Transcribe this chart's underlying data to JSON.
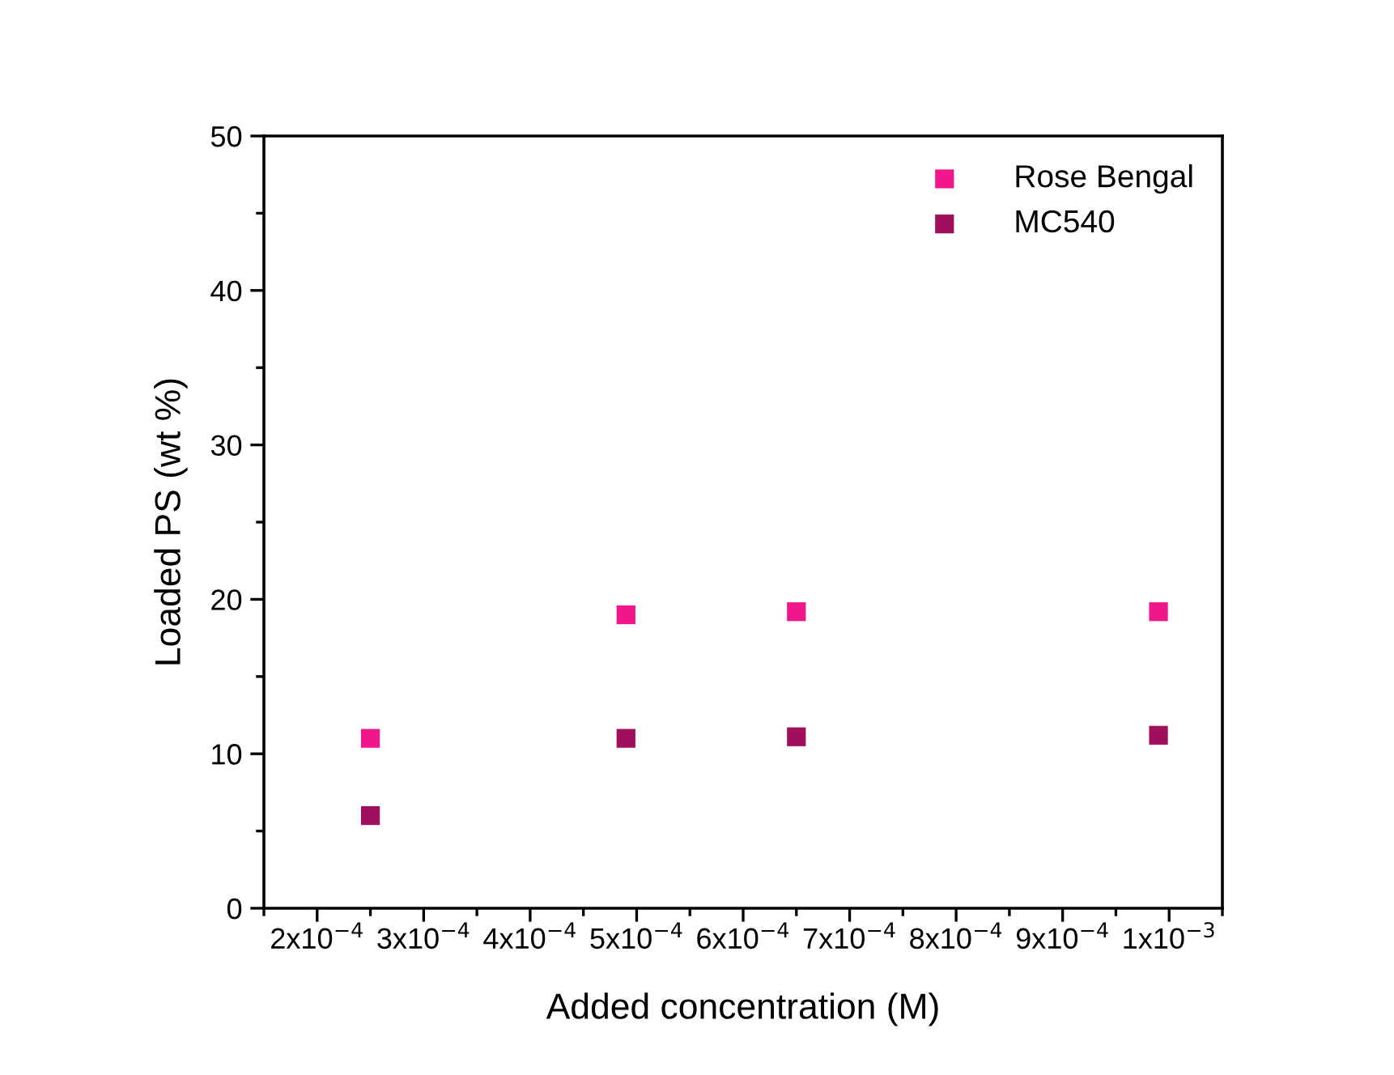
{
  "chart_data": {
    "type": "scatter",
    "xlabel": "Added concentration (M)",
    "ylabel": "Loaded PS (wt %)",
    "x": [
      0.00025,
      0.00049,
      0.00065,
      0.00099
    ],
    "series": [
      {
        "name": "Rose Bengal",
        "color": "#f0168c",
        "values": [
          11,
          19,
          19.2,
          19.2
        ]
      },
      {
        "name": "MC540",
        "color": "#a00f5c",
        "values": [
          6,
          11,
          11.1,
          11.2
        ]
      }
    ],
    "xlim": [
      0.00015,
      0.00105
    ],
    "ylim": [
      0,
      50
    ],
    "xticks": [
      {
        "value": 0.0002,
        "label": "2x10$^{−4}$"
      },
      {
        "value": 0.0003,
        "label": "3x10$^{−4}$"
      },
      {
        "value": 0.0004,
        "label": "4x10$^{−4}$"
      },
      {
        "value": 0.0005,
        "label": "5x10$^{−4}$"
      },
      {
        "value": 0.0006,
        "label": "6x10$^{−4}$"
      },
      {
        "value": 0.0007,
        "label": "7x10$^{−4}$"
      },
      {
        "value": 0.0008,
        "label": "8x10$^{−4}$"
      },
      {
        "value": 0.0009,
        "label": "9x10$^{−4}$"
      },
      {
        "value": 0.001,
        "label": "1x10$^{−3}$"
      }
    ],
    "yticks": [
      0,
      10,
      20,
      30,
      40,
      50
    ],
    "marker": "square",
    "legend": "top right",
    "grid": false
  }
}
